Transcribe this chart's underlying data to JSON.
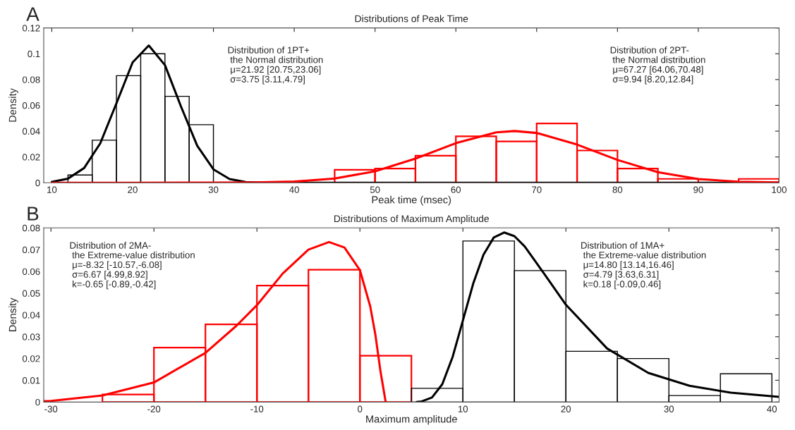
{
  "chart_data": [
    {
      "type": "histogram",
      "title": "Distributions of Peak Time",
      "xlabel": "Peak time (msec)",
      "ylabel": "Density",
      "xlim": [
        9,
        100
      ],
      "xticks": [
        10,
        20,
        30,
        40,
        50,
        60,
        70,
        80,
        90,
        100
      ],
      "ylim": [
        0,
        0.12
      ],
      "yticks": [
        0,
        0.02,
        0.04,
        0.06,
        0.08,
        0.1,
        0.12
      ],
      "series": [
        {
          "color": "#000000",
          "bins": [
            12,
            15,
            18,
            21,
            24,
            27,
            30
          ],
          "values": [
            0.006,
            0.033,
            0.083,
            0.1,
            0.067,
            0.045
          ]
        },
        {
          "color": "#ff0000",
          "bins": [
            45,
            50,
            55,
            60,
            65,
            70,
            75,
            80,
            85,
            90,
            95,
            100
          ],
          "values": [
            0.01,
            0.011,
            0.021,
            0.036,
            0.032,
            0.046,
            0.025,
            0.011,
            0.003,
            0,
            0.003
          ]
        },
        {
          "type": "line",
          "color": "#000000",
          "x": [
            10,
            12,
            14,
            16,
            18,
            20,
            22,
            24,
            26,
            28,
            30,
            32,
            34,
            36,
            40,
            100
          ],
          "values": [
            0.0007,
            0.0032,
            0.0114,
            0.0306,
            0.0616,
            0.0933,
            0.1064,
            0.0912,
            0.0589,
            0.0286,
            0.0104,
            0.0029,
            0.0006,
            0.0001,
            0,
            0
          ]
        },
        {
          "type": "line",
          "color": "#ff0000",
          "x": [
            10,
            20,
            30,
            35,
            40,
            45,
            50,
            55,
            60,
            65,
            67.27,
            70,
            75,
            80,
            85,
            90,
            95,
            100
          ],
          "values": [
            0,
            0,
            0.0001,
            0.0002,
            0.0009,
            0.0033,
            0.0089,
            0.0187,
            0.0307,
            0.0391,
            0.0401,
            0.0386,
            0.0296,
            0.0177,
            0.0082,
            0.0029,
            0.0008,
            0.0002
          ]
        }
      ],
      "annotations": [
        "A",
        "Distribution of 1PT+\n the Normal distribution\n μ=21.92 [20.75,23.06]\n σ=3.75 [3.11,4.79]",
        "Distribution of 2PT-\n the Normal distribution\n μ=67.27 [64.06,70.48]\n σ=9.94 [8.20,12.84]"
      ]
    },
    {
      "type": "histogram",
      "title": "Distributions of Maximum Amplitude",
      "xlabel": "Maximum amplitude",
      "ylabel": "Density",
      "xlim": [
        -30.7,
        40.7
      ],
      "xticks": [
        -30,
        -20,
        -10,
        0,
        10,
        20,
        30,
        40
      ],
      "ylim": [
        0,
        0.08
      ],
      "yticks": [
        0,
        0.01,
        0.02,
        0.03,
        0.04,
        0.05,
        0.06,
        0.07,
        0.08
      ],
      "series": [
        {
          "color": "#ff0000",
          "bins": [
            -25,
            -20,
            -15,
            -10,
            -5,
            0,
            5
          ],
          "values": [
            0.0035,
            0.025,
            0.0357,
            0.0535,
            0.0608,
            0.0213
          ]
        },
        {
          "color": "#000000",
          "bins": [
            5,
            10,
            15,
            20,
            25,
            30,
            35,
            40
          ],
          "values": [
            0.0063,
            0.074,
            0.0604,
            0.0233,
            0.02,
            0.003,
            0.013
          ]
        },
        {
          "type": "line",
          "color": "#ff0000",
          "x": [
            -30.7,
            -30,
            -25,
            -20,
            -15,
            -12,
            -10,
            -7.5,
            -5,
            -3,
            -1.5,
            0,
            1,
            1.5,
            2,
            2.5
          ],
          "values": [
            0.0004,
            0.0005,
            0.003,
            0.009,
            0.0226,
            0.035,
            0.0445,
            0.059,
            0.07,
            0.0735,
            0.071,
            0.0606,
            0.044,
            0.031,
            0.014,
            0
          ]
        },
        {
          "type": "line",
          "color": "#000000",
          "x": [
            5.5,
            6,
            7,
            8,
            9,
            10,
            11,
            12,
            13,
            14,
            15,
            16,
            18,
            20,
            24,
            28,
            32,
            36,
            40.7
          ],
          "values": [
            0,
            0.0003,
            0.0021,
            0.0082,
            0.0207,
            0.0375,
            0.0544,
            0.0677,
            0.0756,
            0.0779,
            0.0762,
            0.0715,
            0.0582,
            0.0447,
            0.0246,
            0.0134,
            0.0075,
            0.0043,
            0.0024
          ]
        }
      ],
      "annotations": [
        "B",
        "Distribution of 2MA-\n the Extreme-value distribution\n μ=-8.32 [-10.57,-6.08]\n σ=6.67 [4.99,8.92]\n k=-0.65 [-0.89,-0.42]",
        "Distribution of 1MA+\n the Extreme-value distribution\n μ=14.80 [13.14,16.46]\n σ=4.79 [3.63,6.31]\n k=0.18 [-0.09,0.46]"
      ]
    }
  ]
}
